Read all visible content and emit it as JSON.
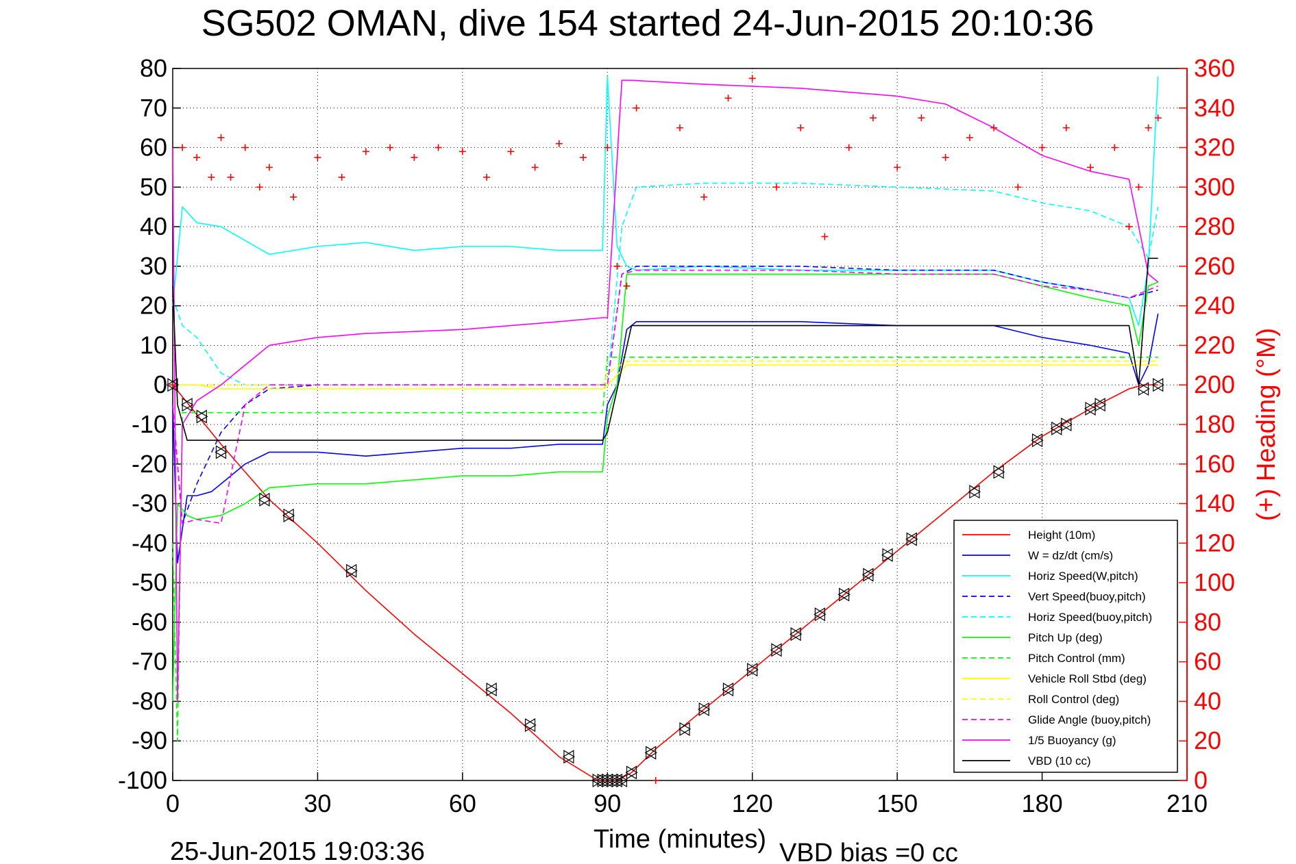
{
  "chart_data": {
    "type": "line",
    "title": "SG502 OMAN, dive 154 started 24-Jun-2015 20:10:36",
    "xlabel": "Time (minutes)",
    "ylabel": "",
    "y2label": "(+) Heading (°M)",
    "xlim": [
      0,
      210
    ],
    "ylim": [
      -100,
      80
    ],
    "y2lim": [
      0,
      360
    ],
    "x_ticks": [
      0,
      30,
      60,
      90,
      120,
      150,
      180,
      210
    ],
    "y_ticks": [
      -100,
      -90,
      -80,
      -70,
      -60,
      -50,
      -40,
      -30,
      -20,
      -10,
      0,
      10,
      20,
      30,
      40,
      50,
      60,
      70,
      80
    ],
    "y2_ticks": [
      0,
      20,
      40,
      60,
      80,
      100,
      120,
      140,
      160,
      180,
      200,
      220,
      240,
      260,
      280,
      300,
      320,
      340,
      360
    ],
    "grid": true,
    "legend_position": "bottom-right",
    "footer_left": "25-Jun-2015 19:03:36",
    "footer_right": "VBD bias =0 cc",
    "colors": {
      "height": "#ff0000",
      "w": "#0000ff",
      "cyan": "#00ffff",
      "green": "#00ff00",
      "yellow": "#ffff00",
      "magenta": "#ff00ff",
      "black": "#000000",
      "heading": "#ff0000"
    },
    "series": [
      {
        "name": "Height (10m)",
        "color": "#ff0000",
        "dash": "solid",
        "x": [
          0,
          10,
          20,
          30,
          40,
          50,
          60,
          70,
          80,
          88,
          92,
          95,
          100,
          110,
          120,
          130,
          140,
          150,
          160,
          170,
          180,
          190,
          198,
          201,
          204
        ],
        "y": [
          0,
          -15,
          -29,
          -40,
          -52,
          -63,
          -73,
          -83,
          -94,
          -100,
          -100,
          -98,
          -92,
          -82,
          -72,
          -62,
          -52,
          -42,
          -32,
          -22,
          -13,
          -6,
          -1,
          0,
          0
        ]
      },
      {
        "name": "W = dz/dt (cm/s)",
        "color": "#0000ff",
        "dash": "solid",
        "x": [
          0,
          1,
          3,
          5,
          8,
          10,
          15,
          20,
          30,
          40,
          50,
          60,
          70,
          80,
          89,
          90,
          92,
          94,
          96,
          110,
          130,
          150,
          170,
          180,
          190,
          198,
          200,
          202,
          204
        ],
        "y": [
          -5,
          -45,
          -28,
          -28,
          -27,
          -25,
          -20,
          -17,
          -17,
          -18,
          -17,
          -16,
          -16,
          -15,
          -15,
          -5,
          0,
          14,
          16,
          16,
          16,
          15,
          15,
          12,
          10,
          8,
          0,
          5,
          18
        ]
      },
      {
        "name": "Horiz Speed(W,pitch)",
        "color": "#00ffff",
        "dash": "solid",
        "x": [
          0,
          2,
          5,
          10,
          20,
          30,
          40,
          50,
          60,
          70,
          80,
          89,
          90,
          92,
          94,
          96,
          110,
          130,
          150,
          170,
          180,
          190,
          198,
          200,
          202,
          204
        ],
        "y": [
          20,
          45,
          41,
          40,
          33,
          35,
          36,
          34,
          35,
          35,
          34,
          34,
          78,
          35,
          30,
          29,
          30,
          29,
          29,
          29,
          26,
          24,
          22,
          15,
          30,
          78
        ]
      },
      {
        "name": "Vert Speed(buoy,pitch)",
        "color": "#0000ff",
        "dash": "dashed",
        "x": [
          0,
          2,
          5,
          10,
          15,
          20,
          30,
          60,
          90,
          93,
          96,
          110,
          130,
          150,
          170,
          180,
          190,
          198,
          204
        ],
        "y": [
          -5,
          -35,
          -25,
          -12,
          -5,
          -1,
          0,
          0,
          0,
          28,
          30,
          30,
          30,
          29,
          29,
          26,
          24,
          22,
          24
        ]
      },
      {
        "name": "Horiz Speed(buoy,pitch)",
        "color": "#00ffff",
        "dash": "dashed",
        "x": [
          0,
          2,
          5,
          10,
          15,
          20,
          30,
          60,
          90,
          93,
          96,
          110,
          130,
          150,
          170,
          180,
          190,
          198,
          202,
          204
        ],
        "y": [
          22,
          15,
          12,
          3,
          0,
          0,
          0,
          0,
          0,
          40,
          50,
          51,
          51,
          50,
          49,
          46,
          44,
          40,
          32,
          45
        ]
      },
      {
        "name": "Pitch Up (deg)",
        "color": "#00ff00",
        "dash": "solid",
        "x": [
          0,
          1,
          3,
          5,
          10,
          15,
          20,
          30,
          40,
          50,
          60,
          70,
          80,
          89,
          90,
          92,
          94,
          96,
          110,
          130,
          150,
          170,
          180,
          190,
          198,
          200,
          202,
          204
        ],
        "y": [
          -80,
          -30,
          -33,
          -34,
          -33,
          -30,
          -26,
          -25,
          -25,
          -24,
          -23,
          -23,
          -22,
          -22,
          -8,
          0,
          28,
          28,
          28,
          28,
          28,
          28,
          25,
          22,
          20,
          10,
          25,
          26
        ]
      },
      {
        "name": "Pitch Control (mm)",
        "color": "#00ff00",
        "dash": "dashed",
        "x": [
          0,
          1,
          2,
          5,
          10,
          20,
          40,
          60,
          89,
          90,
          94,
          110,
          130,
          150,
          170,
          190,
          200,
          204
        ],
        "y": [
          -40,
          -90,
          -7,
          -7,
          -7,
          -7,
          -7,
          -7,
          -7,
          7,
          7,
          7,
          7,
          7,
          7,
          7,
          7,
          7
        ]
      },
      {
        "name": "Vehicle Roll Stbd (deg)",
        "color": "#ffff00",
        "dash": "solid",
        "x": [
          0,
          5,
          10,
          20,
          30,
          40,
          60,
          80,
          89,
          90,
          94,
          110,
          130,
          150,
          170,
          190,
          200,
          204
        ],
        "y": [
          0,
          0,
          -1,
          -1,
          -1,
          -1,
          -1,
          -1,
          -1,
          0,
          5,
          5,
          5,
          5,
          5,
          5,
          5,
          5
        ]
      },
      {
        "name": "Roll Control (deg)",
        "color": "#ffff00",
        "dash": "dashed",
        "x": [
          0,
          5,
          10,
          20,
          40,
          60,
          89,
          90,
          94,
          110,
          130,
          150,
          170,
          190,
          200,
          204
        ],
        "y": [
          0,
          0,
          0,
          0,
          0,
          0,
          0,
          3,
          6,
          6,
          6,
          6,
          6,
          6,
          6,
          6
        ]
      },
      {
        "name": "Glide Angle (buoy,pitch)",
        "color": "#ff00ff",
        "dash": "dashed",
        "x": [
          0,
          2,
          5,
          10,
          15,
          20,
          60,
          90,
          93,
          96,
          110,
          130,
          150,
          170,
          180,
          190,
          198,
          204
        ],
        "y": [
          -5,
          -35,
          -34,
          -35,
          -5,
          0,
          0,
          0,
          28,
          29,
          29,
          29,
          28,
          28,
          25,
          24,
          22,
          25
        ]
      },
      {
        "name": "1/5 Buoyancy (g)",
        "color": "#ff00ff",
        "dash": "solid",
        "x": [
          0,
          1,
          2,
          5,
          10,
          15,
          20,
          30,
          40,
          60,
          80,
          89,
          90,
          93,
          95,
          110,
          130,
          150,
          160,
          170,
          180,
          190,
          198,
          200,
          202,
          204
        ],
        "y": [
          60,
          -80,
          -10,
          -4,
          0,
          5,
          10,
          12,
          13,
          14,
          16,
          17,
          17,
          77,
          77,
          76,
          75,
          73,
          71,
          65,
          58,
          54,
          52,
          40,
          28,
          26
        ]
      },
      {
        "name": "VBD (10 cc)",
        "color": "#000000",
        "dash": "solid",
        "x": [
          0,
          1,
          3,
          5,
          10,
          30,
          60,
          89,
          90,
          95,
          100,
          130,
          160,
          190,
          198,
          200,
          202,
          204
        ],
        "y": [
          25,
          -5,
          -14,
          -14,
          -14,
          -14,
          -14,
          -14,
          -12,
          15,
          15,
          15,
          15,
          15,
          15,
          0,
          32,
          32
        ]
      }
    ],
    "heading": {
      "name": "(+) Heading",
      "axis": "right",
      "x": [
        0,
        2,
        5,
        8,
        10,
        12,
        15,
        18,
        20,
        25,
        30,
        35,
        40,
        45,
        50,
        55,
        60,
        65,
        70,
        75,
        80,
        85,
        90,
        92,
        94,
        96,
        100,
        105,
        110,
        115,
        120,
        125,
        130,
        135,
        140,
        145,
        150,
        155,
        160,
        165,
        170,
        175,
        180,
        185,
        190,
        195,
        198,
        200,
        202,
        204
      ],
      "y": [
        200,
        320,
        315,
        305,
        325,
        305,
        320,
        300,
        310,
        295,
        315,
        305,
        318,
        320,
        315,
        320,
        318,
        305,
        318,
        310,
        322,
        315,
        320,
        260,
        250,
        340,
        0,
        330,
        295,
        345,
        355,
        300,
        330,
        275,
        320,
        335,
        310,
        335,
        315,
        325,
        330,
        300,
        320,
        330,
        310,
        320,
        280,
        300,
        330,
        335
      ]
    },
    "markers": {
      "name": "depth markers",
      "x": [
        0,
        3,
        6,
        10,
        19,
        24,
        37,
        66,
        74,
        82,
        88,
        89,
        90,
        91,
        92,
        93,
        95,
        99,
        106,
        110,
        115,
        120,
        125,
        129,
        134,
        139,
        144,
        148,
        153,
        166,
        171,
        179,
        183,
        185,
        190,
        192,
        201,
        204
      ],
      "y": [
        0,
        -5,
        -8,
        -17,
        -29,
        -33,
        -47,
        -77,
        -86,
        -94,
        -100,
        -100,
        -100,
        -100,
        -100,
        -100,
        -98,
        -93,
        -87,
        -82,
        -77,
        -72,
        -67,
        -63,
        -58,
        -53,
        -48,
        -43,
        -39,
        -27,
        -22,
        -14,
        -11,
        -10,
        -6,
        -5,
        -1,
        0
      ]
    }
  }
}
